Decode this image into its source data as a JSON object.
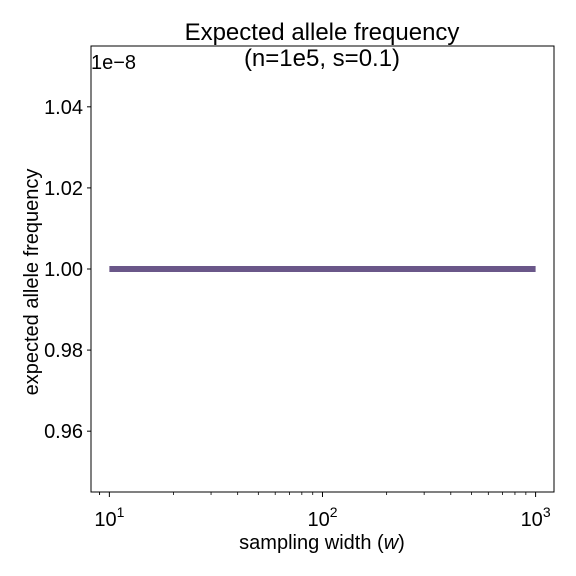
{
  "chart_data": {
    "type": "line",
    "title_line1": "Expected allele frequency",
    "title_line2": "(n=1e5, s=0.1)",
    "xlabel_prefix": "sampling width (",
    "xlabel_var": "w",
    "xlabel_suffix": ")",
    "ylabel": "expected allele frequency",
    "offset_text": "1e−8",
    "x_scale": "log",
    "xlim": [
      8.2,
      1220
    ],
    "ylim": [
      0.945,
      1.055
    ],
    "x_ticks": [
      {
        "value": 10,
        "base": "10",
        "exp": "1"
      },
      {
        "value": 100,
        "base": "10",
        "exp": "2"
      },
      {
        "value": 1000,
        "base": "10",
        "exp": "3"
      }
    ],
    "y_ticks": [
      {
        "value": 0.96,
        "label": "0.96"
      },
      {
        "value": 0.98,
        "label": "0.98"
      },
      {
        "value": 1.0,
        "label": "1.00"
      },
      {
        "value": 1.02,
        "label": "1.02"
      },
      {
        "value": 1.04,
        "label": "1.04"
      }
    ],
    "series": [
      {
        "color": "#6a5789",
        "x": [
          10,
          20,
          50,
          100,
          200,
          500,
          1000
        ],
        "y": [
          1.0,
          1.0,
          1.0,
          1.0,
          1.0,
          1.0,
          1.0
        ]
      }
    ],
    "grid": false,
    "legend": "none"
  }
}
